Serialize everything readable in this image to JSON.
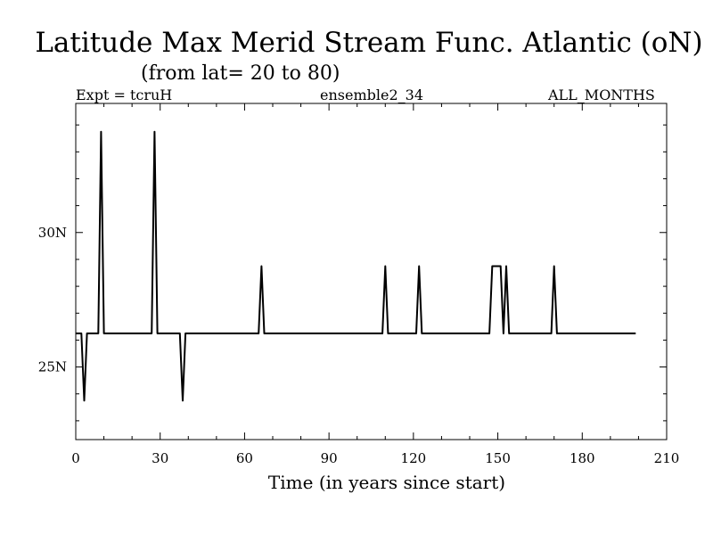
{
  "chart_data": {
    "type": "line",
    "title": "Latitude Max Merid Stream Func. Atlantic (oN)",
    "subtitle": "(from lat= 20 to 80)",
    "header_left": "Expt = tcruH",
    "header_center": "ensemble2_34",
    "header_right": "ALL_MONTHS",
    "xlabel": "Time (in years since start)",
    "ylabel": "",
    "xlim": [
      0,
      210
    ],
    "ylim": [
      22.3,
      34.8
    ],
    "xticks": [
      0,
      30,
      60,
      90,
      120,
      150,
      180,
      210
    ],
    "xtick_labels": [
      "0",
      "30",
      "60",
      "90",
      "120",
      "150",
      "180",
      "210"
    ],
    "yticks": [
      25,
      30
    ],
    "ytick_labels": [
      "25N",
      "30N"
    ],
    "grid": false,
    "series": [
      {
        "color": "#000000",
        "x": [
          0,
          2,
          3,
          4,
          5,
          8,
          9,
          10,
          11,
          27,
          28,
          29,
          30,
          37,
          38,
          39,
          40,
          65,
          66,
          67,
          68,
          109,
          110,
          111,
          112,
          121,
          122,
          123,
          124,
          147,
          148,
          151,
          152,
          153,
          154,
          169,
          170,
          171,
          172,
          199
        ],
        "y": [
          26.25,
          26.25,
          23.75,
          26.25,
          26.25,
          26.25,
          33.75,
          26.25,
          26.25,
          26.25,
          33.75,
          26.25,
          26.25,
          26.25,
          23.75,
          26.25,
          26.25,
          26.25,
          28.75,
          26.25,
          26.25,
          26.25,
          28.75,
          26.25,
          26.25,
          26.25,
          28.75,
          26.25,
          26.25,
          26.25,
          28.75,
          28.75,
          26.25,
          28.75,
          26.25,
          26.25,
          28.75,
          26.25,
          26.25,
          26.25
        ]
      }
    ]
  }
}
